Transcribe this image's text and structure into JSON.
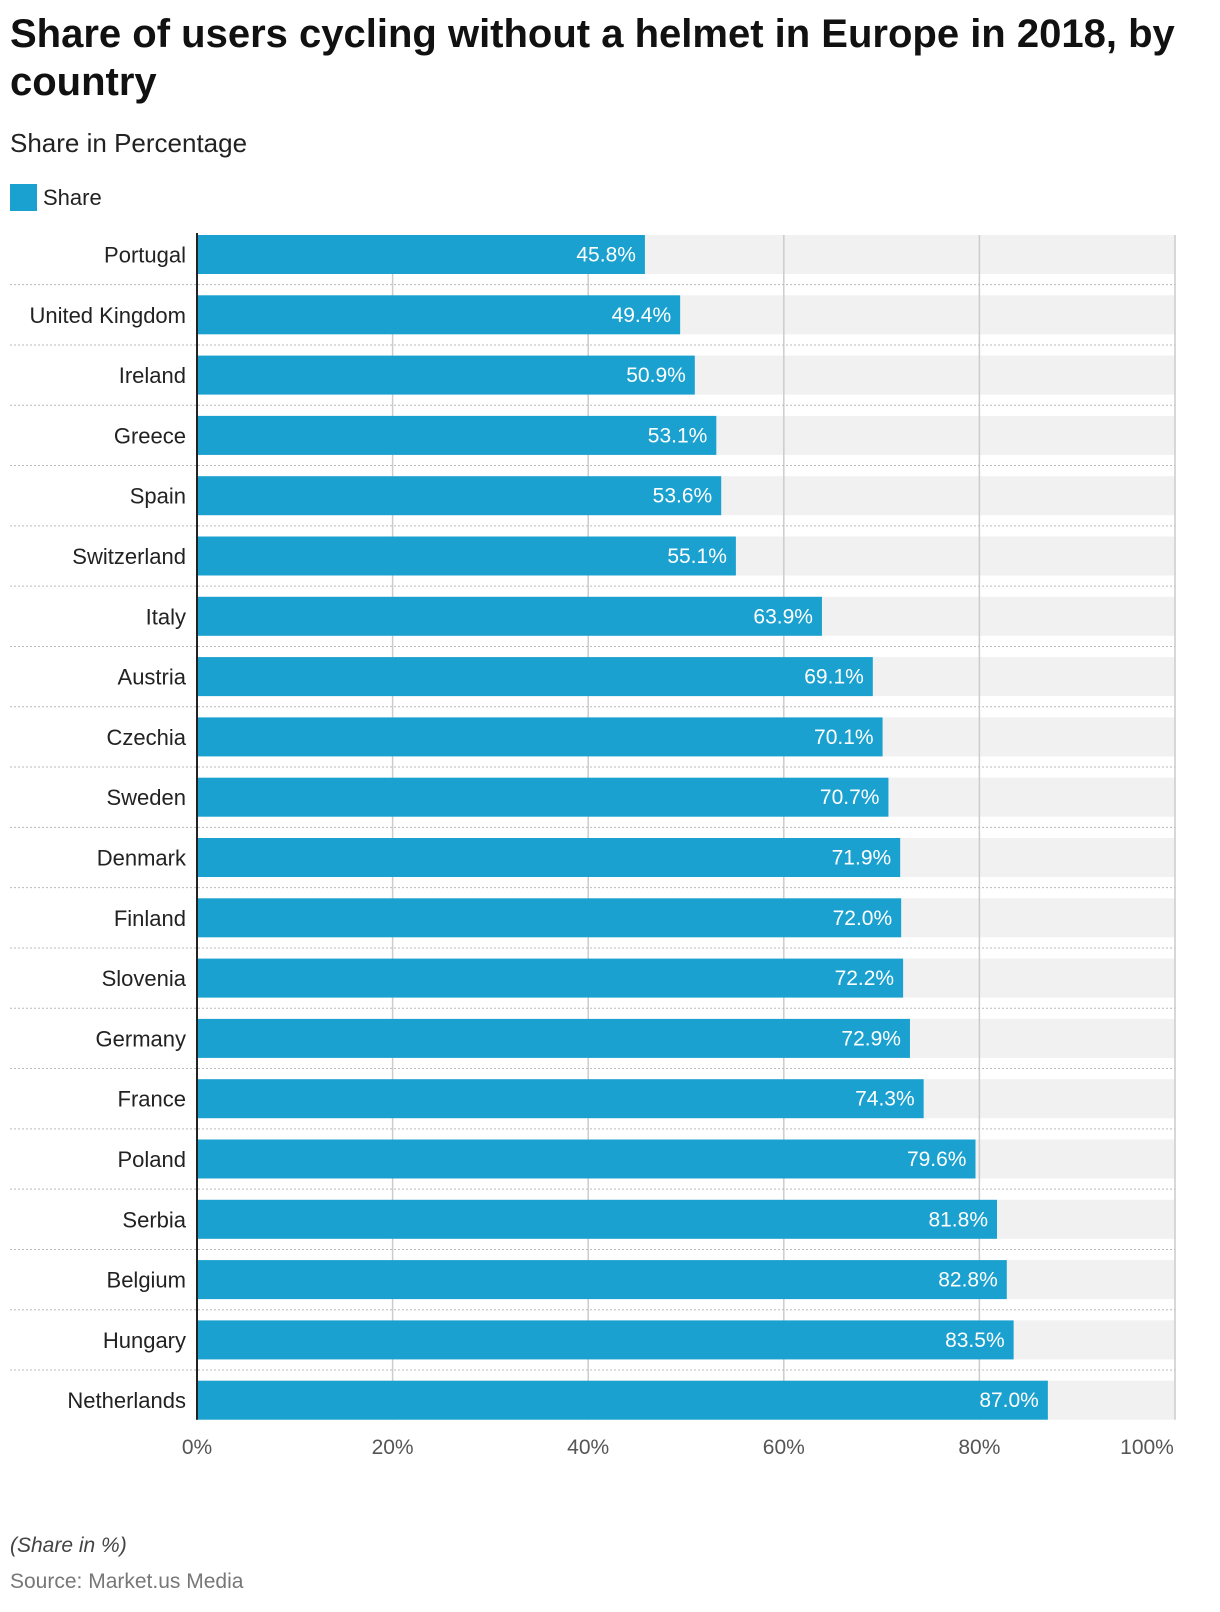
{
  "title": "Share of users cycling without a helmet in Europe in 2018, by country",
  "subtitle": "Share in Percentage",
  "footnote": "(Share in %)",
  "source": "Source: Market.us Media",
  "colors": {
    "bar": "#1ba1cf",
    "track": "#f1f1f1",
    "grid": "#cccccc",
    "axis": "#222222",
    "label_text": "#ffffff"
  },
  "chart_data": {
    "type": "bar",
    "orientation": "horizontal",
    "title": "Share of users cycling without a helmet in Europe in 2018, by country",
    "subtitle": "Share in Percentage",
    "xlabel": "",
    "ylabel": "",
    "xlim": [
      0,
      100
    ],
    "x_ticks": [
      "0%",
      "20%",
      "40%",
      "60%",
      "80%",
      "100%"
    ],
    "x_tick_values": [
      0,
      20,
      40,
      60,
      80,
      100
    ],
    "legend": [
      "Share"
    ],
    "legend_position": "top-left",
    "grid": true,
    "categories": [
      "Portugal",
      "United Kingdom",
      "Ireland",
      "Greece",
      "Spain",
      "Switzerland",
      "Italy",
      "Austria",
      "Czechia",
      "Sweden",
      "Denmark",
      "Finland",
      "Slovenia",
      "Germany",
      "France",
      "Poland",
      "Serbia",
      "Belgium",
      "Hungary",
      "Netherlands"
    ],
    "values": [
      45.8,
      49.4,
      50.9,
      53.1,
      53.6,
      55.1,
      63.9,
      69.1,
      70.1,
      70.7,
      71.9,
      72.0,
      72.2,
      72.9,
      74.3,
      79.6,
      81.8,
      82.8,
      83.5,
      87.0
    ],
    "labels": [
      "45.8%",
      "49.4%",
      "50.9%",
      "53.1%",
      "53.6%",
      "55.1%",
      "63.9%",
      "69.1%",
      "70.1%",
      "70.7%",
      "71.9%",
      "72.0%",
      "72.2%",
      "72.9%",
      "74.3%",
      "79.6%",
      "81.8%",
      "82.8%",
      "83.5%",
      "87.0%"
    ]
  }
}
